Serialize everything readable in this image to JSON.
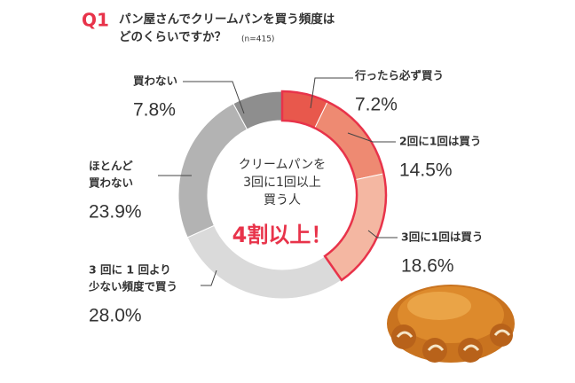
{
  "chart_data": {
    "type": "donut",
    "question_no": "Q1",
    "title_lines": [
      "パン屋さんでクリームパンを買う頻度は",
      "どのくらいですか？"
    ],
    "sample": "(n=415)",
    "categories": [
      [
        "行ったら必ず買う"
      ],
      [
        "2回に1回は買う"
      ],
      [
        "3回に1回は買う"
      ],
      [
        "3 回に 1 回より",
        "少ない頻度で買う"
      ],
      [
        "ほとんど",
        "買わない"
      ],
      [
        "買わない"
      ]
    ],
    "values": [
      7.2,
      14.5,
      18.6,
      28.0,
      23.9,
      7.8
    ],
    "value_labels": [
      "7.2%",
      "14.5%",
      "18.6%",
      "28.0%",
      "23.9%",
      "7.8%"
    ],
    "colors": [
      "#e8584c",
      "#ee8a72",
      "#f4b7a2",
      "#dadada",
      "#b3b3b3",
      "#8e8e8e"
    ],
    "center_lines": [
      "クリームパンを",
      "3回に1回以上",
      "買う人"
    ],
    "center_emphasis": "4割以上！"
  }
}
